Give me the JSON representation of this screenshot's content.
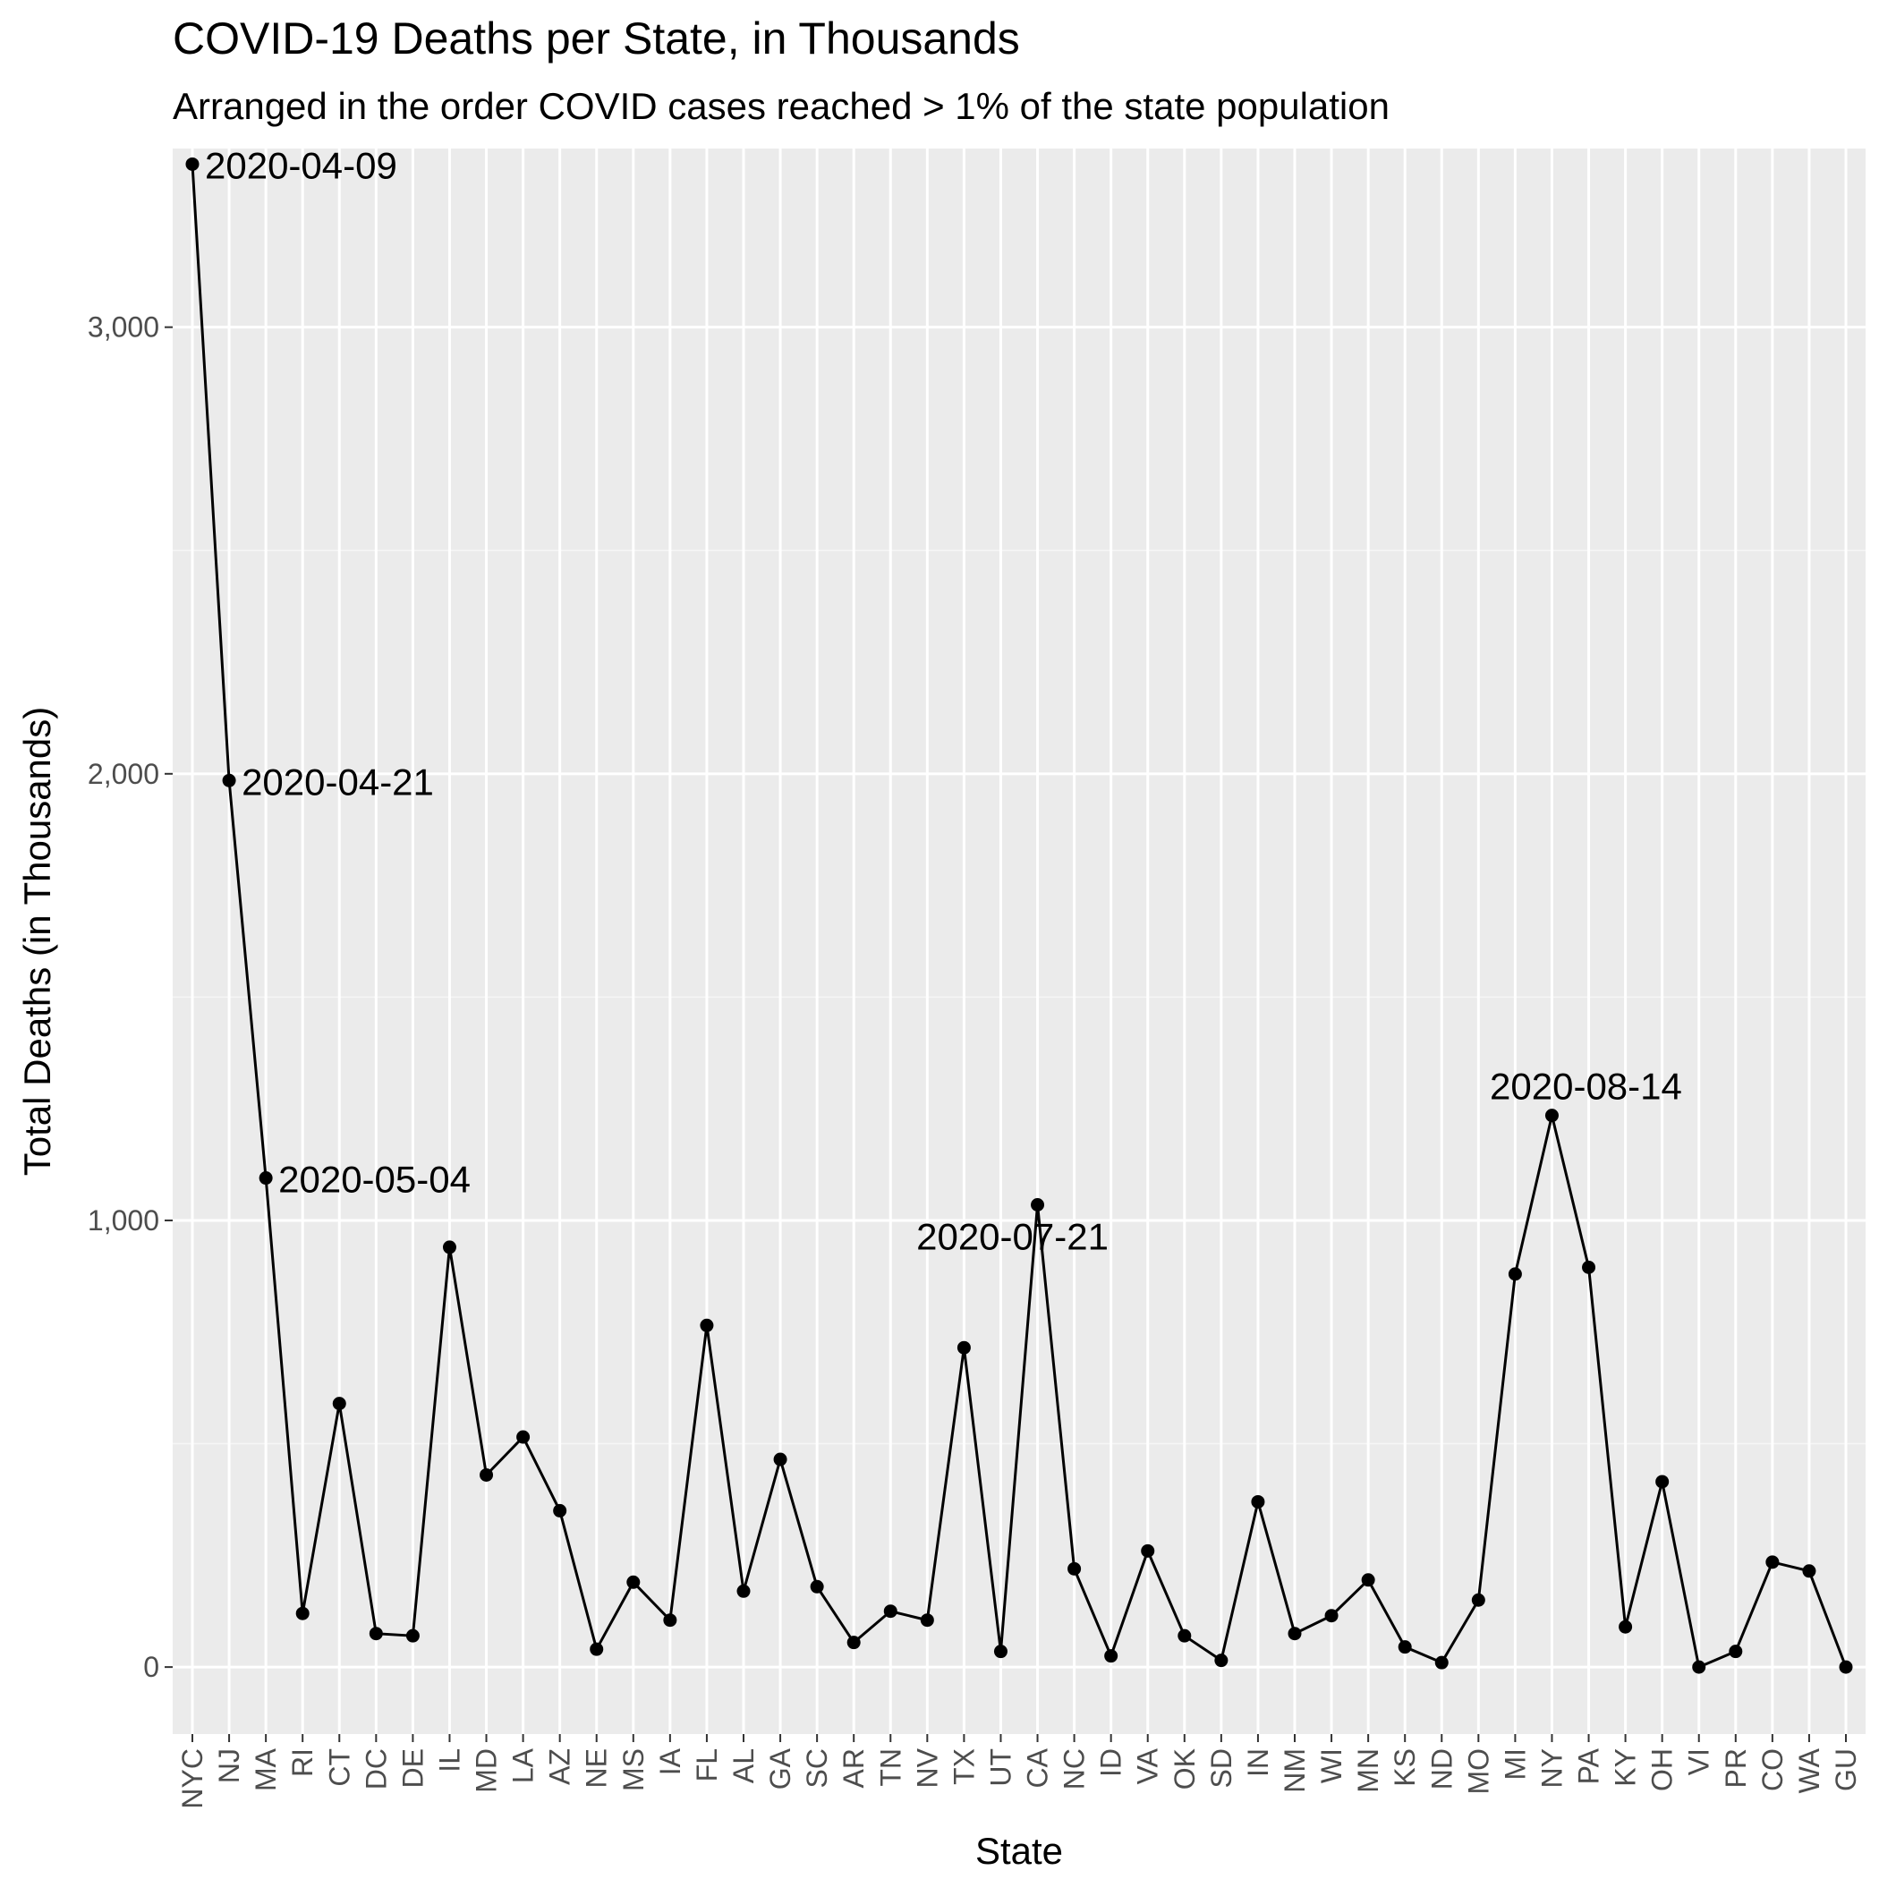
{
  "chart_data": {
    "type": "line",
    "title": "COVID-19 Deaths per State, in Thousands",
    "subtitle": "Arranged in the order COVID cases reached > 1% of the state population",
    "xlabel": "State",
    "ylabel": "Total Deaths (in Thousands)",
    "ylim": [
      -150,
      3400
    ],
    "yticks": [
      0,
      1000,
      2000,
      3000
    ],
    "ytick_labels": [
      "0",
      "1,000",
      "2,000",
      "3,000"
    ],
    "grid": true,
    "legend": "none",
    "categories": [
      "NYC",
      "NJ",
      "MA",
      "RI",
      "CT",
      "DC",
      "DE",
      "IL",
      "MD",
      "LA",
      "AZ",
      "NE",
      "MS",
      "IA",
      "FL",
      "AL",
      "GA",
      "SC",
      "AR",
      "TN",
      "NV",
      "TX",
      "UT",
      "CA",
      "NC",
      "ID",
      "VA",
      "OK",
      "SD",
      "IN",
      "NM",
      "WI",
      "MN",
      "KS",
      "ND",
      "MO",
      "MI",
      "NY",
      "PA",
      "KY",
      "OH",
      "VI",
      "PR",
      "CO",
      "WA",
      "GU"
    ],
    "series": [
      {
        "values": [
          3365,
          1985,
          1095,
          120,
          590,
          75,
          70,
          940,
          430,
          515,
          350,
          40,
          190,
          105,
          765,
          170,
          465,
          180,
          55,
          125,
          105,
          715,
          35,
          1035,
          220,
          25,
          260,
          70,
          15,
          370,
          75,
          115,
          195,
          45,
          10,
          150,
          880,
          1235,
          895,
          90,
          415,
          0,
          35,
          235,
          215,
          0
        ],
        "color": "#000000"
      }
    ],
    "annotations": [
      {
        "category": "NYC",
        "text": "2020-04-09"
      },
      {
        "category": "NJ",
        "text": "2020-04-21"
      },
      {
        "category": "MA",
        "text": "2020-05-04"
      },
      {
        "category": "CA",
        "text": "2020-07-21"
      },
      {
        "category": "NY",
        "text": "2020-08-14"
      }
    ]
  }
}
